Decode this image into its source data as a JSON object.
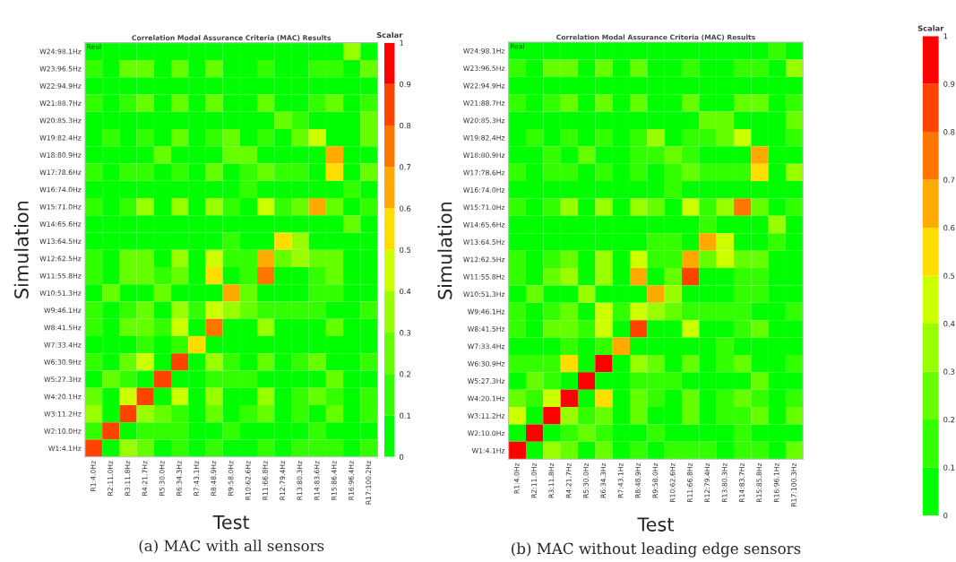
{
  "chart_data": [
    {
      "type": "heatmap",
      "title": "Correlation Modal Assurance Criteria (MAC) Results",
      "xlabel": "Test",
      "ylabel": "Simulation",
      "annotations": [
        "Real",
        "(a) MAC with all sensors"
      ],
      "categories": [
        "R1:4.0Hz",
        "R2:11.0Hz",
        "R3:11.8Hz",
        "R4:21.7Hz",
        "R5:30.0Hz",
        "R6:34.3Hz",
        "R7:43.1Hz",
        "R8:48.9Hz",
        "R9:58.0Hz",
        "R10:62.6Hz",
        "R11:66.8Hz",
        "R12:79.4Hz",
        "R13:80.3Hz",
        "R14:83.6Hz",
        "R15:86.4Hz",
        "R16:96.4Hz",
        "R17:100.2Hz"
      ],
      "y_categories": [
        "W24:98.1Hz",
        "W23:96.5Hz",
        "W22:94.9Hz",
        "W21:88.7Hz",
        "W20:85.3Hz",
        "W19:82.4Hz",
        "W18:80.9Hz",
        "W17:78.6Hz",
        "W16:74.0Hz",
        "W15:71.0Hz",
        "W14:65.6Hz",
        "W13:64.5Hz",
        "W12:62.5Hz",
        "W11:55.8Hz",
        "W10:51.3Hz",
        "W9:46.1Hz",
        "W8:41.5Hz",
        "W7:33.4Hz",
        "W6:30.9Hz",
        "W5:27.3Hz",
        "W4:20.1Hz",
        "W3:11.2Hz",
        "W2:10.0Hz",
        "W1:4.1Hz"
      ],
      "clim": [
        0,
        1
      ],
      "cticks": [
        0,
        0.1,
        0.2,
        0.3,
        0.4,
        0.5,
        0.6,
        0.7,
        0.8,
        0.9,
        1
      ],
      "clabel": "Scalar",
      "cells": [
        [
          0.05,
          0.05,
          0.05,
          0.05,
          0.05,
          0.05,
          0.05,
          0.05,
          0.05,
          0.05,
          0.05,
          0.05,
          0.05,
          0.05,
          0.05,
          0.35,
          0.05
        ],
        [
          0.15,
          0.05,
          0.25,
          0.25,
          0.05,
          0.25,
          0.05,
          0.25,
          0.05,
          0.05,
          0.15,
          0.05,
          0.05,
          0.15,
          0.15,
          0.05,
          0.25
        ],
        [
          0.05,
          0.05,
          0.05,
          0.05,
          0.05,
          0.05,
          0.05,
          0.05,
          0.05,
          0.05,
          0.05,
          0.05,
          0.05,
          0.05,
          0.05,
          0.05,
          0.05
        ],
        [
          0.15,
          0.05,
          0.15,
          0.25,
          0.05,
          0.25,
          0.05,
          0.25,
          0.05,
          0.05,
          0.25,
          0.05,
          0.05,
          0.15,
          0.25,
          0.05,
          0.15
        ],
        [
          0.05,
          0.05,
          0.05,
          0.05,
          0.05,
          0.05,
          0.05,
          0.05,
          0.05,
          0.05,
          0.05,
          0.25,
          0.15,
          0.05,
          0.05,
          0.05,
          0.25
        ],
        [
          0.05,
          0.15,
          0.05,
          0.15,
          0.05,
          0.25,
          0.05,
          0.15,
          0.25,
          0.05,
          0.15,
          0.05,
          0.25,
          0.45,
          0.05,
          0.05,
          0.25
        ],
        [
          0.05,
          0.05,
          0.05,
          0.05,
          0.25,
          0.05,
          0.05,
          0.05,
          0.25,
          0.25,
          0.05,
          0.05,
          0.05,
          0.05,
          0.65,
          0.05,
          0.05
        ],
        [
          0.15,
          0.05,
          0.15,
          0.15,
          0.05,
          0.15,
          0.05,
          0.25,
          0.05,
          0.15,
          0.25,
          0.15,
          0.15,
          0.05,
          0.55,
          0.05,
          0.25
        ],
        [
          0.05,
          0.05,
          0.05,
          0.05,
          0.05,
          0.05,
          0.05,
          0.05,
          0.05,
          0.15,
          0.05,
          0.05,
          0.05,
          0.05,
          0.05,
          0.15,
          0.05
        ],
        [
          0.15,
          0.05,
          0.15,
          0.35,
          0.05,
          0.35,
          0.05,
          0.35,
          0.15,
          0.05,
          0.45,
          0.15,
          0.25,
          0.65,
          0.25,
          0.05,
          0.15
        ],
        [
          0.05,
          0.05,
          0.05,
          0.05,
          0.05,
          0.05,
          0.05,
          0.05,
          0.05,
          0.05,
          0.05,
          0.05,
          0.05,
          0.05,
          0.05,
          0.25,
          0.05
        ],
        [
          0.05,
          0.05,
          0.05,
          0.05,
          0.05,
          0.05,
          0.05,
          0.05,
          0.15,
          0.05,
          0.05,
          0.55,
          0.35,
          0.05,
          0.05,
          0.05,
          0.05
        ],
        [
          0.15,
          0.05,
          0.25,
          0.25,
          0.05,
          0.35,
          0.05,
          0.45,
          0.15,
          0.15,
          0.65,
          0.25,
          0.35,
          0.25,
          0.25,
          0.05,
          0.05
        ],
        [
          0.15,
          0.05,
          0.25,
          0.25,
          0.15,
          0.25,
          0.05,
          0.55,
          0.05,
          0.15,
          0.75,
          0.05,
          0.05,
          0.15,
          0.25,
          0.05,
          0.05
        ],
        [
          0.05,
          0.25,
          0.05,
          0.05,
          0.25,
          0.05,
          0.05,
          0.05,
          0.65,
          0.25,
          0.05,
          0.05,
          0.05,
          0.15,
          0.15,
          0.05,
          0.05
        ],
        [
          0.15,
          0.05,
          0.15,
          0.25,
          0.05,
          0.35,
          0.15,
          0.45,
          0.35,
          0.25,
          0.15,
          0.15,
          0.15,
          0.15,
          0.05,
          0.05,
          0.15
        ],
        [
          0.15,
          0.05,
          0.25,
          0.25,
          0.15,
          0.45,
          0.05,
          0.75,
          0.05,
          0.05,
          0.35,
          0.05,
          0.05,
          0.05,
          0.25,
          0.05,
          0.05
        ],
        [
          0.05,
          0.05,
          0.05,
          0.15,
          0.05,
          0.15,
          0.55,
          0.05,
          0.05,
          0.05,
          0.05,
          0.05,
          0.05,
          0.05,
          0.05,
          0.05,
          0.05
        ],
        [
          0.15,
          0.05,
          0.25,
          0.45,
          0.05,
          0.85,
          0.05,
          0.35,
          0.15,
          0.05,
          0.25,
          0.05,
          0.15,
          0.25,
          0.05,
          0.05,
          0.15
        ],
        [
          0.05,
          0.25,
          0.15,
          0.05,
          0.85,
          0.05,
          0.05,
          0.15,
          0.15,
          0.15,
          0.05,
          0.05,
          0.05,
          0.05,
          0.25,
          0.05,
          0.05
        ],
        [
          0.25,
          0.05,
          0.45,
          0.85,
          0.05,
          0.45,
          0.05,
          0.35,
          0.05,
          0.05,
          0.35,
          0.05,
          0.15,
          0.25,
          0.15,
          0.05,
          0.15
        ],
        [
          0.35,
          0.05,
          0.85,
          0.35,
          0.25,
          0.15,
          0.05,
          0.25,
          0.05,
          0.15,
          0.25,
          0.05,
          0.15,
          0.05,
          0.25,
          0.05,
          0.15
        ],
        [
          0.15,
          0.85,
          0.05,
          0.15,
          0.15,
          0.15,
          0.05,
          0.05,
          0.15,
          0.05,
          0.05,
          0.05,
          0.05,
          0.15,
          0.05,
          0.05,
          0.05
        ],
        [
          0.85,
          0.05,
          0.35,
          0.25,
          0.05,
          0.15,
          0.05,
          0.15,
          0.05,
          0.05,
          0.15,
          0.05,
          0.15,
          0.15,
          0.15,
          0.05,
          0.15
        ]
      ]
    },
    {
      "type": "heatmap",
      "title": "Correlation Modal Assurance Criteria (MAC) Results",
      "xlabel": "Test",
      "ylabel": "Simulation",
      "annotations": [
        "Real",
        "(b) MAC without leading edge sensors"
      ],
      "categories": [
        "R1:4.0Hz",
        "R2:11.0Hz",
        "R3:11.8Hz",
        "R4:21.7Hz",
        "R5:30.0Hz",
        "R6:34.3Hz",
        "R7:43.1Hz",
        "R8:48.9Hz",
        "R9:58.0Hz",
        "R10:62.6Hz",
        "R11:66.8Hz",
        "R12:79.4Hz",
        "R13:80.3Hz",
        "R14:83.7Hz",
        "R15:85.8Hz",
        "R16:96.1Hz",
        "R17:100.3Hz"
      ],
      "y_categories": [
        "W24:98.1Hz",
        "W23:96.5Hz",
        "W22:94.9Hz",
        "W21:88.7Hz",
        "W20:85.3Hz",
        "W19:82.4Hz",
        "W18:80.9Hz",
        "W17:78.6Hz",
        "W16:74.0Hz",
        "W15:71.0Hz",
        "W14:65.6Hz",
        "W13:64.5Hz",
        "W12:62.5Hz",
        "W11:55.8Hz",
        "W10:51.3Hz",
        "W9:46.1Hz",
        "W8:41.5Hz",
        "W7:33.4Hz",
        "W6:30.9Hz",
        "W5:27.3Hz",
        "W4:20.1Hz",
        "W3:11.2Hz",
        "W2:10.0Hz",
        "W1:4.1Hz"
      ],
      "clim": [
        0,
        1
      ],
      "cticks": [
        0,
        0.1,
        0.2,
        0.3,
        0.4,
        0.5,
        0.6,
        0.7,
        0.8,
        0.9,
        1
      ],
      "clabel": "Scalar",
      "cells": [
        [
          0.05,
          0.05,
          0.05,
          0.05,
          0.05,
          0.05,
          0.05,
          0.05,
          0.05,
          0.05,
          0.05,
          0.05,
          0.05,
          0.05,
          0.05,
          0.15,
          0.05
        ],
        [
          0.15,
          0.05,
          0.25,
          0.25,
          0.05,
          0.25,
          0.05,
          0.25,
          0.05,
          0.05,
          0.15,
          0.05,
          0.05,
          0.15,
          0.15,
          0.05,
          0.35
        ],
        [
          0.05,
          0.05,
          0.05,
          0.05,
          0.05,
          0.05,
          0.05,
          0.05,
          0.05,
          0.05,
          0.05,
          0.05,
          0.05,
          0.05,
          0.05,
          0.05,
          0.05
        ],
        [
          0.15,
          0.05,
          0.15,
          0.25,
          0.05,
          0.25,
          0.05,
          0.25,
          0.05,
          0.05,
          0.25,
          0.05,
          0.05,
          0.25,
          0.25,
          0.05,
          0.15
        ],
        [
          0.05,
          0.05,
          0.05,
          0.05,
          0.05,
          0.05,
          0.05,
          0.05,
          0.05,
          0.05,
          0.05,
          0.25,
          0.25,
          0.05,
          0.05,
          0.05,
          0.25
        ],
        [
          0.05,
          0.15,
          0.05,
          0.15,
          0.05,
          0.15,
          0.05,
          0.15,
          0.35,
          0.05,
          0.15,
          0.15,
          0.25,
          0.45,
          0.05,
          0.05,
          0.15
        ],
        [
          0.05,
          0.05,
          0.15,
          0.05,
          0.25,
          0.05,
          0.05,
          0.15,
          0.15,
          0.25,
          0.15,
          0.05,
          0.05,
          0.05,
          0.65,
          0.05,
          0.05
        ],
        [
          0.15,
          0.05,
          0.15,
          0.15,
          0.05,
          0.15,
          0.05,
          0.15,
          0.05,
          0.15,
          0.25,
          0.15,
          0.15,
          0.15,
          0.55,
          0.05,
          0.35
        ],
        [
          0.05,
          0.05,
          0.05,
          0.05,
          0.05,
          0.05,
          0.05,
          0.05,
          0.05,
          0.15,
          0.05,
          0.05,
          0.05,
          0.05,
          0.05,
          0.05,
          0.05
        ],
        [
          0.15,
          0.05,
          0.15,
          0.35,
          0.05,
          0.35,
          0.05,
          0.35,
          0.25,
          0.05,
          0.45,
          0.15,
          0.35,
          0.75,
          0.25,
          0.05,
          0.15
        ],
        [
          0.05,
          0.05,
          0.05,
          0.05,
          0.05,
          0.05,
          0.05,
          0.05,
          0.05,
          0.05,
          0.05,
          0.15,
          0.05,
          0.05,
          0.05,
          0.35,
          0.05
        ],
        [
          0.05,
          0.05,
          0.05,
          0.05,
          0.05,
          0.05,
          0.05,
          0.05,
          0.15,
          0.15,
          0.05,
          0.65,
          0.45,
          0.05,
          0.05,
          0.15,
          0.05
        ],
        [
          0.15,
          0.05,
          0.15,
          0.25,
          0.05,
          0.35,
          0.05,
          0.45,
          0.15,
          0.15,
          0.65,
          0.25,
          0.45,
          0.25,
          0.25,
          0.05,
          0.05
        ],
        [
          0.15,
          0.05,
          0.25,
          0.35,
          0.05,
          0.35,
          0.05,
          0.65,
          0.05,
          0.25,
          0.85,
          0.05,
          0.05,
          0.15,
          0.15,
          0.05,
          0.05
        ],
        [
          0.05,
          0.25,
          0.05,
          0.05,
          0.35,
          0.05,
          0.05,
          0.05,
          0.65,
          0.35,
          0.05,
          0.05,
          0.05,
          0.15,
          0.15,
          0.05,
          0.05
        ],
        [
          0.15,
          0.05,
          0.15,
          0.25,
          0.05,
          0.45,
          0.15,
          0.45,
          0.35,
          0.25,
          0.15,
          0.15,
          0.15,
          0.15,
          0.05,
          0.05,
          0.15
        ],
        [
          0.15,
          0.05,
          0.25,
          0.25,
          0.15,
          0.45,
          0.05,
          0.85,
          0.05,
          0.05,
          0.45,
          0.05,
          0.05,
          0.15,
          0.25,
          0.05,
          0.05
        ],
        [
          0.05,
          0.05,
          0.05,
          0.15,
          0.05,
          0.15,
          0.65,
          0.05,
          0.05,
          0.05,
          0.05,
          0.05,
          0.15,
          0.05,
          0.05,
          0.05,
          0.05
        ],
        [
          0.15,
          0.15,
          0.15,
          0.55,
          0.05,
          0.95,
          0.05,
          0.35,
          0.25,
          0.05,
          0.25,
          0.05,
          0.15,
          0.25,
          0.05,
          0.05,
          0.15
        ],
        [
          0.05,
          0.25,
          0.15,
          0.05,
          0.95,
          0.05,
          0.05,
          0.15,
          0.15,
          0.15,
          0.05,
          0.05,
          0.05,
          0.05,
          0.25,
          0.05,
          0.05
        ],
        [
          0.25,
          0.15,
          0.45,
          0.95,
          0.05,
          0.55,
          0.05,
          0.25,
          0.15,
          0.05,
          0.25,
          0.05,
          0.15,
          0.25,
          0.15,
          0.05,
          0.15
        ],
        [
          0.45,
          0.05,
          0.95,
          0.35,
          0.15,
          0.25,
          0.05,
          0.25,
          0.05,
          0.05,
          0.25,
          0.05,
          0.15,
          0.15,
          0.25,
          0.05,
          0.25
        ],
        [
          0.05,
          0.95,
          0.05,
          0.15,
          0.25,
          0.15,
          0.05,
          0.05,
          0.15,
          0.05,
          0.05,
          0.05,
          0.05,
          0.15,
          0.05,
          0.05,
          0.05
        ],
        [
          0.95,
          0.05,
          0.35,
          0.25,
          0.05,
          0.25,
          0.05,
          0.15,
          0.05,
          0.15,
          0.15,
          0.15,
          0.05,
          0.15,
          0.15,
          0.05,
          0.25
        ]
      ]
    }
  ]
}
